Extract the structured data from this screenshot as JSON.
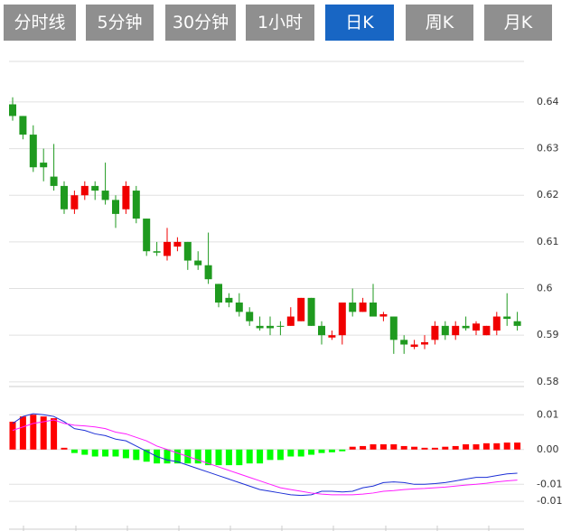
{
  "tabs": [
    "分时线",
    "5分钟",
    "30分钟",
    "1小时",
    "日K",
    "周K",
    "月K"
  ],
  "active_tab": 4,
  "chart_data": [
    {
      "type": "candlestick",
      "open": [
        0.6395,
        0.637,
        0.633,
        0.627,
        0.624,
        0.622,
        0.617,
        0.62,
        0.622,
        0.621,
        0.619,
        0.617,
        0.621,
        0.615,
        0.608,
        0.607,
        0.609,
        0.61,
        0.606,
        0.605,
        0.601,
        0.598,
        0.597,
        0.595,
        0.592,
        0.592,
        0.592,
        0.592,
        0.593,
        0.598,
        0.592,
        0.5895,
        0.59,
        0.597,
        0.595,
        0.597,
        0.594,
        0.594,
        0.589,
        0.5875,
        0.588,
        0.589,
        0.592,
        0.59,
        0.592,
        0.591,
        0.59,
        0.591,
        0.594,
        0.593
      ],
      "high": [
        0.641,
        0.637,
        0.635,
        0.63,
        0.631,
        0.623,
        0.621,
        0.623,
        0.623,
        0.627,
        0.62,
        0.623,
        0.622,
        0.615,
        0.61,
        0.613,
        0.611,
        0.61,
        0.608,
        0.612,
        0.601,
        0.599,
        0.599,
        0.596,
        0.594,
        0.594,
        0.593,
        0.596,
        0.598,
        0.598,
        0.593,
        0.591,
        0.597,
        0.6,
        0.598,
        0.601,
        0.595,
        0.594,
        0.59,
        0.589,
        0.59,
        0.593,
        0.593,
        0.593,
        0.594,
        0.593,
        0.592,
        0.595,
        0.599,
        0.595
      ],
      "low": [
        0.636,
        0.632,
        0.625,
        0.623,
        0.621,
        0.616,
        0.616,
        0.619,
        0.619,
        0.618,
        0.613,
        0.616,
        0.614,
        0.607,
        0.607,
        0.606,
        0.608,
        0.604,
        0.604,
        0.601,
        0.596,
        0.596,
        0.594,
        0.592,
        0.591,
        0.59,
        0.59,
        0.592,
        0.593,
        0.592,
        0.588,
        0.589,
        0.588,
        0.594,
        0.595,
        0.594,
        0.593,
        0.586,
        0.586,
        0.587,
        0.587,
        0.588,
        0.589,
        0.589,
        0.591,
        0.59,
        0.59,
        0.59,
        0.592,
        0.591
      ],
      "close": [
        0.637,
        0.633,
        0.626,
        0.626,
        0.622,
        0.617,
        0.62,
        0.622,
        0.621,
        0.619,
        0.616,
        0.622,
        0.615,
        0.608,
        0.6077,
        0.61,
        0.61,
        0.606,
        0.605,
        0.602,
        0.597,
        0.597,
        0.595,
        0.593,
        0.5915,
        0.5915,
        0.5918,
        0.594,
        0.598,
        0.592,
        0.59,
        0.59,
        0.597,
        0.595,
        0.597,
        0.594,
        0.5945,
        0.589,
        0.588,
        0.588,
        0.5885,
        0.592,
        0.59,
        0.592,
        0.5915,
        0.5925,
        0.592,
        0.594,
        0.5935,
        0.592
      ],
      "up_color": "#f00000",
      "down_color": "#1f9a1f",
      "ylim": [
        0.579,
        0.6487
      ],
      "yticks": [
        0.58,
        0.59,
        0.6,
        0.61,
        0.62,
        0.63,
        0.64
      ],
      "grid": true
    },
    {
      "type": "macd",
      "bars": [
        0.008,
        0.0095,
        0.01,
        0.0095,
        0.009,
        0.0005,
        -0.001,
        -0.0015,
        -0.002,
        -0.002,
        -0.002,
        -0.0025,
        -0.003,
        -0.0035,
        -0.004,
        -0.004,
        -0.004,
        -0.004,
        -0.004,
        -0.0045,
        -0.0045,
        -0.0045,
        -0.0045,
        -0.004,
        -0.004,
        -0.003,
        -0.003,
        -0.002,
        -0.002,
        -0.0015,
        -0.001,
        -0.0008,
        -0.0005,
        0.0008,
        0.001,
        0.0015,
        0.0015,
        0.0015,
        0.001,
        0.0008,
        0.0005,
        0.0005,
        0.0008,
        0.001,
        0.0015,
        0.0015,
        0.0018,
        0.0018,
        0.002,
        0.002
      ],
      "up_color": "#ff0000",
      "down_color": "#00ff00",
      "series": [
        {
          "color": "#1c2fd6",
          "values": [
            0.0075,
            0.0095,
            0.0103,
            0.01,
            0.0095,
            0.008,
            0.006,
            0.0055,
            0.0045,
            0.004,
            0.003,
            0.0025,
            0.001,
            -0.0005,
            -0.002,
            -0.003,
            -0.0035,
            -0.0045,
            -0.0055,
            -0.0065,
            -0.0075,
            -0.0085,
            -0.0095,
            -0.0105,
            -0.0115,
            -0.012,
            -0.0125,
            -0.013,
            -0.0132,
            -0.013,
            -0.012,
            -0.012,
            -0.0122,
            -0.012,
            -0.011,
            -0.0105,
            -0.0095,
            -0.0093,
            -0.0095,
            -0.01,
            -0.01,
            -0.0098,
            -0.0095,
            -0.009,
            -0.0085,
            -0.008,
            -0.008,
            -0.0075,
            -0.007,
            -0.0068
          ]
        },
        {
          "color": "#ff1cff",
          "values": [
            0.0055,
            0.0065,
            0.0075,
            0.008,
            0.0085,
            0.0075,
            0.007,
            0.0068,
            0.0065,
            0.006,
            0.005,
            0.0045,
            0.0035,
            0.0025,
            0.001,
            0,
            -0.001,
            -0.002,
            -0.003,
            -0.004,
            -0.005,
            -0.006,
            -0.007,
            -0.008,
            -0.009,
            -0.01,
            -0.011,
            -0.0115,
            -0.012,
            -0.0125,
            -0.0128,
            -0.013,
            -0.013,
            -0.013,
            -0.0128,
            -0.0125,
            -0.012,
            -0.0118,
            -0.0115,
            -0.0113,
            -0.0112,
            -0.011,
            -0.0108,
            -0.0105,
            -0.0102,
            -0.01,
            -0.0097,
            -0.0093,
            -0.009,
            -0.0088
          ]
        }
      ],
      "ylim": [
        -0.0229,
        0.015
      ],
      "yticks": [
        0.01,
        {
          "value": 0,
          "label": "0.00"
        },
        -0.01,
        {
          "value": -0.0149,
          "label": "-0.01"
        }
      ],
      "grid": true
    }
  ]
}
